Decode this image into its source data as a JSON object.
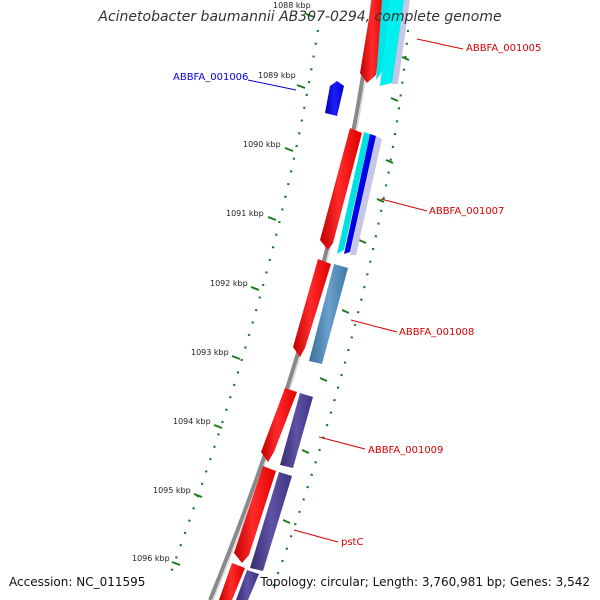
{
  "title": "Acinetobacter baumannii AB307-0294, complete genome",
  "accession": "Accession: NC_011595",
  "summary": "Topology: circular; Length: 3,760,981 bp; Genes: 3,542",
  "colors": {
    "backbone": "#7f7f7f",
    "ticks": "#1b7a1b",
    "gene_forward": "#ff0000",
    "label_red": "#d40000",
    "label_blue": "#0000cc",
    "cyan": "#00e5e5",
    "blue": "#0000e6",
    "steel_blue": "#4a86b4",
    "slate_purple": "#4b3f8f",
    "lavender": "#c6c6e6"
  },
  "ruler": [
    {
      "kbp": 1088,
      "label": "1088 kbp"
    },
    {
      "kbp": 1089,
      "label": "1089 kbp"
    },
    {
      "kbp": 1090,
      "label": "1090 kbp"
    },
    {
      "kbp": 1091,
      "label": "1091 kbp"
    },
    {
      "kbp": 1092,
      "label": "1092 kbp"
    },
    {
      "kbp": 1093,
      "label": "1093 kbp"
    },
    {
      "kbp": 1094,
      "label": "1094 kbp"
    },
    {
      "kbp": 1095,
      "label": "1095 kbp"
    },
    {
      "kbp": 1096,
      "label": "1096 kbp"
    }
  ],
  "genes": [
    {
      "name": "ABBFA_001005",
      "color": "#d40000"
    },
    {
      "name": "ABBFA_001006",
      "color": "#0000cc"
    },
    {
      "name": "ABBFA_001007",
      "color": "#d40000"
    },
    {
      "name": "ABBFA_001008",
      "color": "#d40000"
    },
    {
      "name": "ABBFA_001009",
      "color": "#d40000"
    },
    {
      "name": "pstC",
      "color": "#d40000"
    }
  ]
}
